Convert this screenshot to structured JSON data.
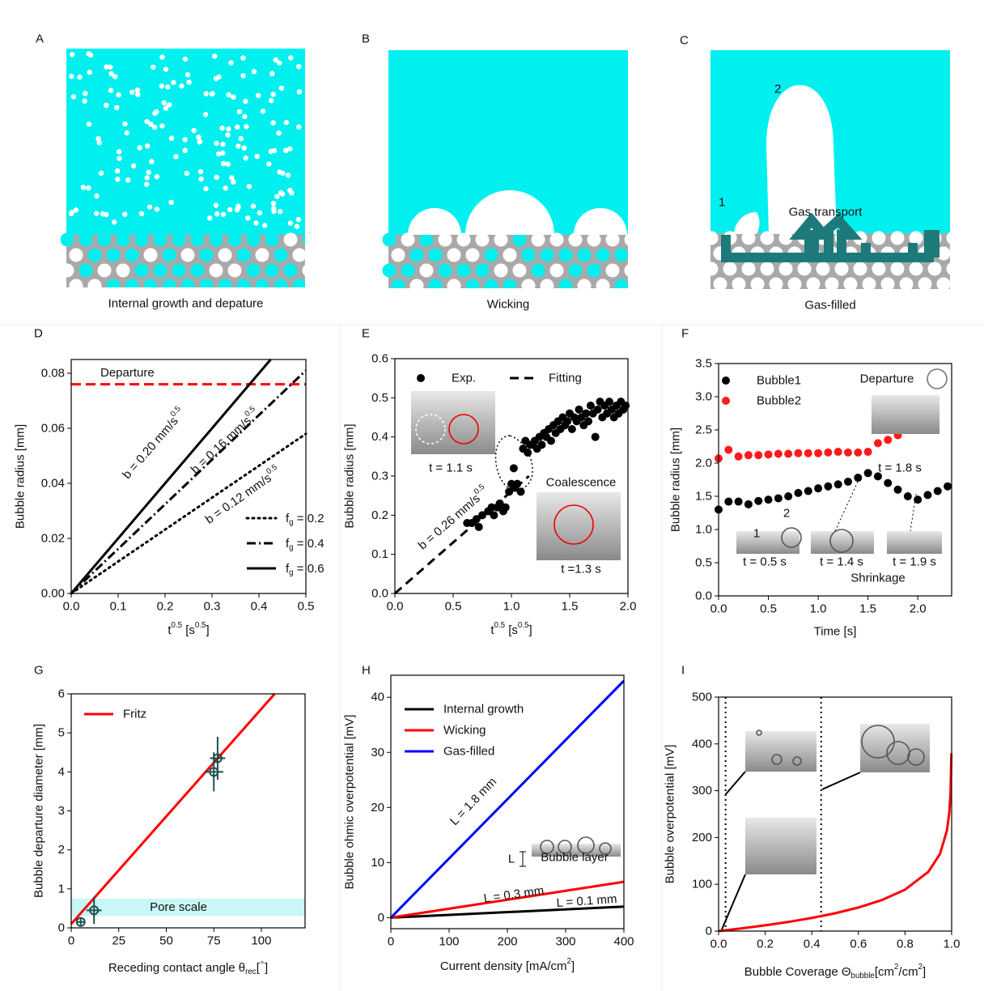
{
  "diagrams": [
    {
      "letter": "A",
      "caption": "Internal growth and depature"
    },
    {
      "letter": "B",
      "caption": "Wicking"
    },
    {
      "letter": "C",
      "caption": "Gas-filled",
      "labels": [
        "1",
        "2",
        "Gas transport"
      ]
    }
  ],
  "chart_data": [
    {
      "panel": "D",
      "type": "line",
      "x_label": [
        "t",
        "0.5",
        " [s",
        "0.5",
        "]"
      ],
      "y_label": "Bubble radius [mm]",
      "xlim": [
        0,
        0.5
      ],
      "ylim": [
        0,
        0.085
      ],
      "xticks": [
        {
          "value": 0,
          "label": "0.0"
        },
        0.1,
        0.2,
        0.3,
        0.4,
        0.5
      ],
      "yticks": [
        {
          "value": 0,
          "label": "0.00"
        },
        0.02,
        0.04,
        0.06,
        0.08
      ],
      "series": [
        {
          "name": [
            "f",
            "g",
            " = 0.2"
          ],
          "color": "#000000",
          "dash": "dotted",
          "x": [
            0,
            0.5
          ],
          "values": [
            0,
            0.058
          ]
        },
        {
          "name": [
            "f",
            "g",
            " = 0.4"
          ],
          "color": "#000000",
          "dash": "dashdot",
          "x": [
            0,
            0.5
          ],
          "values": [
            0,
            0.081
          ]
        },
        {
          "name": [
            "f",
            "g",
            " = 0.6"
          ],
          "color": "#000000",
          "dash": "solid",
          "x": [
            0,
            0.425
          ],
          "values": [
            0,
            0.085
          ]
        }
      ],
      "hlines": [
        {
          "label": "Departure",
          "value": 0.076,
          "color": "#ff0000"
        }
      ],
      "annotations": [
        [
          "b = 0.20 mm/s",
          "0.5"
        ],
        [
          "b = 0.16 mm/s",
          "0.5"
        ],
        [
          "b = 0.12 mm/s",
          "0.5"
        ]
      ]
    },
    {
      "panel": "E",
      "type": "scatter",
      "x_label": [
        "t",
        "0.5",
        " [s",
        "0.5",
        "]"
      ],
      "y_label": "Bubble radius [mm]",
      "xlim": [
        0,
        2
      ],
      "ylim": [
        0,
        0.6
      ],
      "xticks": [
        {
          "value": 0,
          "label": "0.0"
        },
        0.5,
        {
          "value": 1,
          "label": "1.0"
        },
        1.5,
        {
          "value": 2,
          "label": "2.0"
        }
      ],
      "yticks": [
        {
          "value": 0,
          "label": "0.0"
        },
        0.1,
        0.2,
        0.3,
        0.4,
        0.5,
        0.6
      ],
      "series": [
        {
          "name": "Exp.",
          "color": "#000000",
          "marker": "filled",
          "x": [
            0.62,
            0.66,
            0.7,
            0.72,
            0.75,
            0.8,
            0.83,
            0.85,
            0.88,
            0.9,
            0.93,
            0.95,
            0.98,
            1.0,
            1.02,
            1.03,
            1.05,
            1.08,
            1.1,
            1.12,
            1.14,
            1.16,
            1.18,
            1.2,
            1.22,
            1.24,
            1.26,
            1.28,
            1.3,
            1.32,
            1.34,
            1.36,
            1.38,
            1.4,
            1.42,
            1.44,
            1.46,
            1.48,
            1.5,
            1.52,
            1.54,
            1.56,
            1.58,
            1.6,
            1.62,
            1.64,
            1.66,
            1.68,
            1.7,
            1.72,
            1.74,
            1.76,
            1.78,
            1.8,
            1.82,
            1.84,
            1.86,
            1.88,
            1.9,
            1.92,
            1.94,
            1.96,
            1.98
          ],
          "values": [
            0.18,
            0.18,
            0.19,
            0.17,
            0.2,
            0.21,
            0.22,
            0.2,
            0.22,
            0.23,
            0.21,
            0.22,
            0.26,
            0.28,
            0.32,
            0.27,
            0.28,
            0.26,
            0.37,
            0.39,
            0.36,
            0.38,
            0.38,
            0.39,
            0.37,
            0.4,
            0.38,
            0.41,
            0.4,
            0.42,
            0.39,
            0.43,
            0.41,
            0.44,
            0.42,
            0.45,
            0.43,
            0.44,
            0.46,
            0.42,
            0.45,
            0.44,
            0.47,
            0.45,
            0.43,
            0.46,
            0.44,
            0.48,
            0.46,
            0.4,
            0.47,
            0.49,
            0.45,
            0.48,
            0.46,
            0.49,
            0.47,
            0.45,
            0.48,
            0.46,
            0.49,
            0.47,
            0.48
          ]
        },
        {
          "name": "Fitting",
          "color": "#000000",
          "dash": "dashed",
          "x": [
            0,
            1.15
          ],
          "values": [
            0,
            0.3
          ]
        }
      ],
      "annotations": [
        "t = 1.1 s",
        "Coalescence",
        "t =1.3 s",
        [
          "b = 0.26 mm/s",
          "0.5"
        ]
      ]
    },
    {
      "panel": "F",
      "type": "scatter",
      "x_label": "Time [s]",
      "y_label": "Bubble radius [mm]",
      "xlim": [
        0,
        2.34
      ],
      "ylim": [
        0,
        3.5
      ],
      "xticks": [
        {
          "value": 0,
          "label": "0.0"
        },
        0.5,
        {
          "value": 1,
          "label": "1.0"
        },
        1.5,
        {
          "value": 2,
          "label": "2.0"
        }
      ],
      "yticks": [
        {
          "value": 0,
          "label": "0.0"
        },
        0.5,
        {
          "value": 1,
          "label": "1.0"
        },
        1.5,
        {
          "value": 2,
          "label": "2.0"
        },
        2.5,
        {
          "value": 3,
          "label": "3.0"
        },
        3.5
      ],
      "series": [
        {
          "name": "Bubble1",
          "color": "#000000",
          "marker": "filled",
          "x": [
            0,
            0.1,
            0.2,
            0.3,
            0.4,
            0.5,
            0.6,
            0.7,
            0.8,
            0.9,
            1.0,
            1.1,
            1.2,
            1.3,
            1.4,
            1.5,
            1.6,
            1.7,
            1.8,
            1.9,
            2.0,
            2.1,
            2.2,
            2.3
          ],
          "values": [
            1.3,
            1.42,
            1.42,
            1.38,
            1.43,
            1.45,
            1.47,
            1.5,
            1.55,
            1.58,
            1.62,
            1.65,
            1.68,
            1.72,
            1.78,
            1.85,
            1.8,
            1.7,
            1.6,
            1.5,
            1.45,
            1.52,
            1.58,
            1.65
          ]
        },
        {
          "name": "Bubble2",
          "color": "#ff1a1a",
          "marker": "filled",
          "x": [
            0,
            0.1,
            0.2,
            0.3,
            0.4,
            0.5,
            0.6,
            0.7,
            0.8,
            0.9,
            1.0,
            1.1,
            1.2,
            1.3,
            1.4,
            1.5,
            1.6,
            1.7,
            1.8
          ],
          "values": [
            2.07,
            2.2,
            2.1,
            2.12,
            2.12,
            2.13,
            2.14,
            2.14,
            2.15,
            2.15,
            2.15,
            2.16,
            2.17,
            2.16,
            2.16,
            2.17,
            2.3,
            2.35,
            2.42
          ]
        }
      ],
      "annotations": [
        "Departure",
        "t = 1.8 s",
        "t = 0.5 s",
        "t = 1.4 s",
        "t = 1.9 s",
        "Shrinkage",
        "1",
        "2"
      ]
    },
    {
      "panel": "G",
      "type": "scatter",
      "x_label": [
        "Receding contact angle θ",
        "rec",
        "[",
        "∘",
        "]"
      ],
      "y_label": "Bubble departure diameter [mm]",
      "xlim": [
        0,
        123
      ],
      "ylim": [
        0,
        6
      ],
      "xticks": [
        0,
        25,
        50,
        75,
        100
      ],
      "yticks": [
        0,
        1,
        2,
        3,
        4,
        5,
        6
      ],
      "bands": [
        {
          "label": "Pore scale",
          "from": 0.3,
          "to": 0.75,
          "color": "#c9f6f6"
        }
      ],
      "series": [
        {
          "name": "Fritz",
          "color": "#ff0000",
          "dash": "solid",
          "x": [
            0,
            107
          ],
          "values": [
            0.1,
            6.0
          ]
        },
        {
          "color": "#1f4f4f",
          "marker": "open",
          "x": [
            5,
            12,
            75,
            77
          ],
          "values": [
            0.15,
            0.45,
            4.0,
            4.35
          ],
          "xerr": [
            2,
            4,
            5,
            4
          ],
          "yerr": [
            0.1,
            0.35,
            0.5,
            0.55
          ]
        }
      ]
    },
    {
      "panel": "H",
      "type": "line",
      "x_label": [
        "Current density [mA/cm",
        "2",
        "]"
      ],
      "y_label": "Bubble ohmic overpotential [mV]",
      "xlim": [
        0,
        400
      ],
      "ylim": [
        -2,
        44
      ],
      "xticks": [
        0,
        100,
        200,
        300,
        400
      ],
      "yticks": [
        0,
        10,
        20,
        30,
        40
      ],
      "series": [
        {
          "name": "Internal growth",
          "color": "#000000",
          "dash": "solid",
          "x": [
            0,
            400
          ],
          "values": [
            0,
            2
          ]
        },
        {
          "name": "Wicking",
          "color": "#ff0000",
          "dash": "solid",
          "x": [
            0,
            400
          ],
          "values": [
            0,
            6.5
          ]
        },
        {
          "name": "Gas-filled",
          "color": "#0000ff",
          "dash": "solid",
          "x": [
            0,
            400
          ],
          "values": [
            0,
            43
          ]
        }
      ],
      "annotations": [
        "L = 1.8 mm",
        "L = 0.3 mm",
        "L = 0.1 mm",
        "L",
        "Bubble layer"
      ]
    },
    {
      "panel": "I",
      "type": "line",
      "x_label": [
        "Bubble Coverage Θ",
        "bubble",
        "[cm",
        "2",
        "/cm",
        "2",
        "]"
      ],
      "y_label": "Bubble overpotential [mV]",
      "xlim": [
        0,
        1
      ],
      "ylim": [
        0,
        500
      ],
      "xticks": [
        {
          "value": 0,
          "label": "0.0"
        },
        0.2,
        0.4,
        0.6,
        0.8,
        {
          "value": 1,
          "label": "1.0"
        }
      ],
      "yticks": [
        0,
        100,
        200,
        300,
        400,
        500
      ],
      "vlines": [
        0.03,
        0.44
      ],
      "series": [
        {
          "color": "#ff0000",
          "dash": "solid",
          "x": [
            0,
            0.1,
            0.2,
            0.3,
            0.4,
            0.5,
            0.6,
            0.7,
            0.8,
            0.9,
            0.95,
            0.98,
            0.99,
            0.995,
            0.999
          ],
          "values": [
            0,
            5.8,
            12.3,
            19.6,
            28.1,
            38.1,
            50.4,
            66.2,
            88.5,
            126.6,
            164.8,
            215.2,
            253.3,
            291.4,
            379.9
          ]
        }
      ]
    }
  ]
}
